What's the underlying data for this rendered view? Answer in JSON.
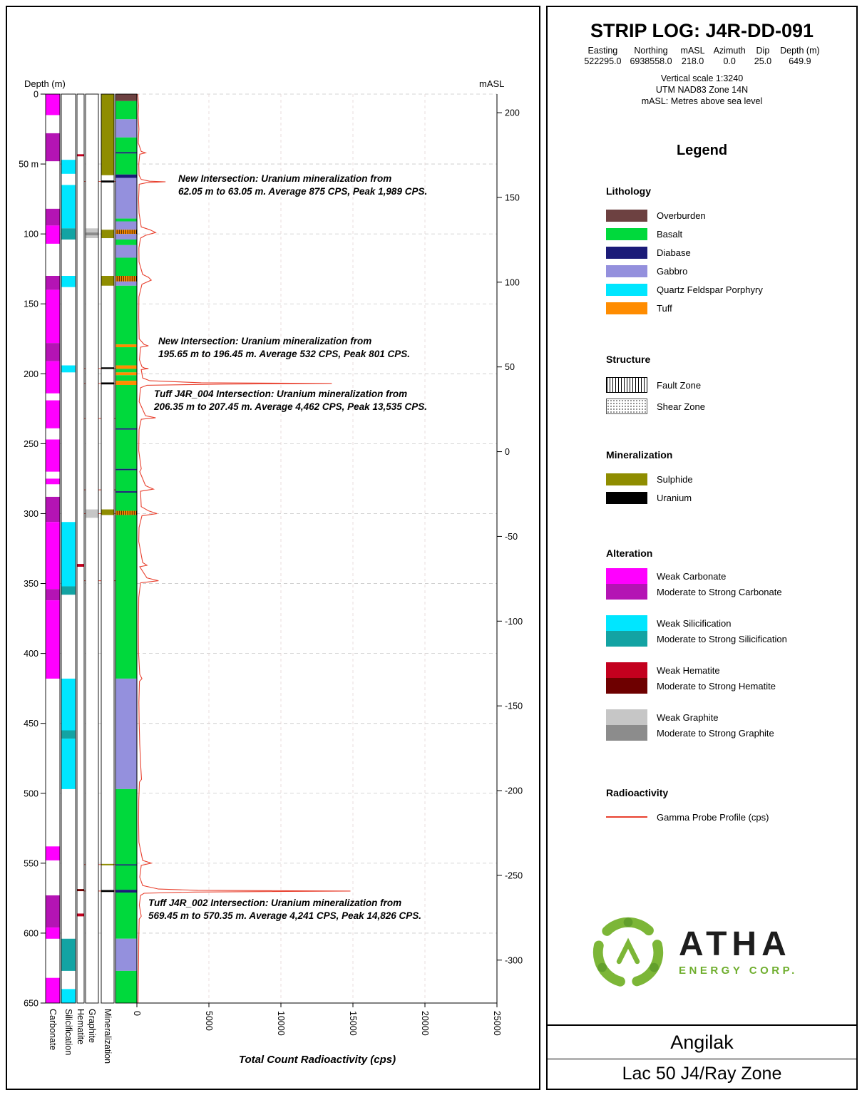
{
  "header": {
    "title": "STRIP LOG: J4R-DD-091",
    "fields": [
      {
        "label": "Easting",
        "value": "522295.0"
      },
      {
        "label": "Northing",
        "value": "6938558.0"
      },
      {
        "label": "mASL",
        "value": "218.0"
      },
      {
        "label": "Azimuth",
        "value": "0.0"
      },
      {
        "label": "Dip",
        "value": "25.0"
      },
      {
        "label": "Depth (m)",
        "value": "649.9"
      }
    ],
    "scale_lines": [
      "Vertical scale 1:3240",
      "UTM NAD83 Zone 14N",
      "mASL: Metres above sea level"
    ]
  },
  "legend": {
    "title": "Legend",
    "lithology": {
      "title": "Lithology",
      "items": [
        {
          "label": "Overburden"
        },
        {
          "label": "Basalt"
        },
        {
          "label": "Diabase"
        },
        {
          "label": "Gabbro"
        },
        {
          "label": "Quartz Feldspar Porphyry"
        },
        {
          "label": "Tuff"
        }
      ]
    },
    "structure": {
      "title": "Structure",
      "items": [
        {
          "label": "Fault Zone"
        },
        {
          "label": "Shear Zone"
        }
      ]
    },
    "mineralization": {
      "title": "Mineralization",
      "items": [
        {
          "label": "Sulphide"
        },
        {
          "label": "Uranium"
        }
      ]
    },
    "alteration": {
      "title": "Alteration",
      "groups": [
        {
          "weak_label": "Weak Carbonate",
          "strong_label": "Moderate to Strong Carbonate"
        },
        {
          "weak_label": "Weak Silicification",
          "strong_label": "Moderate to Strong Silicification"
        },
        {
          "weak_label": "Weak Hematite",
          "strong_label": "Moderate to Strong Hematite"
        },
        {
          "weak_label": "Weak Graphite",
          "strong_label": "Moderate to Strong Graphite"
        }
      ]
    },
    "radioactivity": {
      "title": "Radioactivity",
      "items": [
        {
          "label": "Gamma Probe Profile (cps)"
        }
      ]
    }
  },
  "brand": {
    "name": "ATHA",
    "tagline": "ENERGY CORP."
  },
  "footer": {
    "area": "Angilak",
    "zone": "Lac 50 J4/Ray Zone"
  },
  "colors": {
    "Overburden": "#6d4141",
    "Basalt": "#00d93c",
    "Diabase": "#1b1b78",
    "Gabbro": "#9490dd",
    "Quartz Feldspar Porphyry": "#00e6ff",
    "Tuff": "#ff8c00",
    "Sulphide": "#8f8d00",
    "Uranium": "#000000",
    "weak_carbonate": "#ff00ff",
    "strong_carbonate": "#b414b4",
    "weak_silicification": "#00e6ff",
    "strong_silicification": "#13a3a3",
    "weak_hematite": "#c3001e",
    "strong_hematite": "#6e0000",
    "weak_graphite": "#c6c6c6",
    "strong_graphite": "#8c8c8c",
    "gamma": "#e8402e",
    "grid": "#c9c9c9"
  },
  "chart_data": {
    "type": "strip-log",
    "depth_axis": {
      "label": "Depth (m)",
      "min": 0,
      "max": 650,
      "tick_interval": 50
    },
    "depth_ticks": [
      "0",
      "50 m",
      "100",
      "150",
      "200",
      "250",
      "300",
      "350",
      "400",
      "450",
      "500",
      "550",
      "600",
      "650"
    ],
    "masl_axis_label": "mASL",
    "masl_ticks": [
      {
        "label": "200",
        "depth": 13.3
      },
      {
        "label": "150",
        "depth": 73.9
      },
      {
        "label": "100",
        "depth": 134.5
      },
      {
        "label": "50",
        "depth": 195.1
      },
      {
        "label": "0",
        "depth": 255.7
      },
      {
        "label": "-50",
        "depth": 316.3
      },
      {
        "label": "-100",
        "depth": 376.9
      },
      {
        "label": "-150",
        "depth": 437.5
      },
      {
        "label": "-200",
        "depth": 498.1
      },
      {
        "label": "-250",
        "depth": 558.7
      },
      {
        "label": "-300",
        "depth": 619.3
      }
    ],
    "cps_axis": {
      "label": "Total Count Radioactivity (cps)",
      "min": 0,
      "max": 25000
    },
    "cps_ticks": [
      "0",
      "5000",
      "10000",
      "15000",
      "20000",
      "25000"
    ],
    "track_labels": [
      "Carbonate",
      "Silicification",
      "Hematite",
      "Graphite",
      "Mineralization"
    ],
    "tracks": {
      "carbonate": [
        {
          "from": 0,
          "to": 15,
          "g": "weak"
        },
        {
          "from": 28,
          "to": 48,
          "g": "strong"
        },
        {
          "from": 82,
          "to": 94,
          "g": "strong"
        },
        {
          "from": 94,
          "to": 107,
          "g": "weak"
        },
        {
          "from": 130,
          "to": 140,
          "g": "strong"
        },
        {
          "from": 140,
          "to": 178,
          "g": "weak"
        },
        {
          "from": 178,
          "to": 191,
          "g": "strong"
        },
        {
          "from": 191,
          "to": 214,
          "g": "weak"
        },
        {
          "from": 219,
          "to": 239,
          "g": "weak"
        },
        {
          "from": 247,
          "to": 270,
          "g": "weak"
        },
        {
          "from": 275,
          "to": 279,
          "g": "weak"
        },
        {
          "from": 288,
          "to": 306,
          "g": "strong"
        },
        {
          "from": 306,
          "to": 354,
          "g": "weak"
        },
        {
          "from": 354,
          "to": 362,
          "g": "strong"
        },
        {
          "from": 362,
          "to": 418,
          "g": "weak"
        },
        {
          "from": 538,
          "to": 548,
          "g": "weak"
        },
        {
          "from": 573,
          "to": 596,
          "g": "strong"
        },
        {
          "from": 596,
          "to": 604,
          "g": "weak"
        },
        {
          "from": 632,
          "to": 650,
          "g": "weak"
        }
      ],
      "silicification": [
        {
          "from": 47,
          "to": 57,
          "g": "weak"
        },
        {
          "from": 65,
          "to": 96,
          "g": "weak"
        },
        {
          "from": 96,
          "to": 104,
          "g": "strong"
        },
        {
          "from": 130,
          "to": 138,
          "g": "weak"
        },
        {
          "from": 194,
          "to": 199,
          "g": "weak"
        },
        {
          "from": 306,
          "to": 352,
          "g": "weak"
        },
        {
          "from": 352,
          "to": 358,
          "g": "strong"
        },
        {
          "from": 418,
          "to": 455,
          "g": "weak"
        },
        {
          "from": 455,
          "to": 461,
          "g": "strong"
        },
        {
          "from": 461,
          "to": 497,
          "g": "weak"
        },
        {
          "from": 604,
          "to": 627,
          "g": "strong"
        },
        {
          "from": 640,
          "to": 650,
          "g": "weak"
        }
      ],
      "hematite": [
        {
          "from": 43,
          "to": 44.5,
          "g": "weak"
        },
        {
          "from": 336,
          "to": 338,
          "g": "weak"
        },
        {
          "from": 568.5,
          "to": 570,
          "g": "strong"
        },
        {
          "from": 586,
          "to": 588,
          "g": "weak"
        }
      ],
      "graphite": [
        {
          "from": 96,
          "to": 103,
          "g": "weak"
        },
        {
          "from": 99,
          "to": 101,
          "g": "strong"
        },
        {
          "from": 297,
          "to": 303,
          "g": "weak"
        }
      ],
      "mineralization": [
        {
          "from": 0,
          "to": 58,
          "type": "Sulphide"
        },
        {
          "from": 61.8,
          "to": 63.2,
          "type": "Uranium"
        },
        {
          "from": 97,
          "to": 103,
          "type": "Sulphide"
        },
        {
          "from": 130,
          "to": 137,
          "type": "Sulphide"
        },
        {
          "from": 195.4,
          "to": 196.6,
          "type": "Uranium"
        },
        {
          "from": 206.2,
          "to": 207.6,
          "type": "Uranium"
        },
        {
          "from": 297,
          "to": 301,
          "type": "Sulphide"
        },
        {
          "from": 550.5,
          "to": 551.5,
          "type": "Sulphide"
        },
        {
          "from": 569.2,
          "to": 570.6,
          "type": "Uranium"
        }
      ],
      "lithology": [
        {
          "from": 0,
          "to": 5,
          "unit": "Overburden"
        },
        {
          "from": 5,
          "to": 18,
          "unit": "Basalt"
        },
        {
          "from": 18,
          "to": 31,
          "unit": "Gabbro"
        },
        {
          "from": 31,
          "to": 41.5,
          "unit": "Basalt"
        },
        {
          "from": 41.5,
          "to": 42.5,
          "unit": "Diabase"
        },
        {
          "from": 42.5,
          "to": 57.5,
          "unit": "Basalt"
        },
        {
          "from": 57.5,
          "to": 60,
          "unit": "Diabase"
        },
        {
          "from": 60,
          "to": 89,
          "unit": "Gabbro"
        },
        {
          "from": 89,
          "to": 91,
          "unit": "Basalt"
        },
        {
          "from": 91,
          "to": 97,
          "unit": "Gabbro"
        },
        {
          "from": 97,
          "to": 100,
          "unit": "Tuff",
          "hatch": true
        },
        {
          "from": 100,
          "to": 104,
          "unit": "Gabbro"
        },
        {
          "from": 104,
          "to": 108,
          "unit": "Basalt"
        },
        {
          "from": 108,
          "to": 117,
          "unit": "Gabbro"
        },
        {
          "from": 117,
          "to": 130,
          "unit": "Basalt"
        },
        {
          "from": 130,
          "to": 134,
          "unit": "Tuff",
          "hatch": true
        },
        {
          "from": 134,
          "to": 137,
          "unit": "Gabbro"
        },
        {
          "from": 137,
          "to": 179,
          "unit": "Basalt"
        },
        {
          "from": 179,
          "to": 181,
          "unit": "Tuff"
        },
        {
          "from": 181,
          "to": 194,
          "unit": "Basalt"
        },
        {
          "from": 194,
          "to": 196.5,
          "unit": "Tuff"
        },
        {
          "from": 196.5,
          "to": 199,
          "unit": "Basalt"
        },
        {
          "from": 199,
          "to": 201,
          "unit": "Tuff"
        },
        {
          "from": 201,
          "to": 205,
          "unit": "Basalt"
        },
        {
          "from": 205,
          "to": 208,
          "unit": "Tuff"
        },
        {
          "from": 208,
          "to": 239,
          "unit": "Basalt"
        },
        {
          "from": 239,
          "to": 240,
          "unit": "Diabase"
        },
        {
          "from": 240,
          "to": 268,
          "unit": "Basalt"
        },
        {
          "from": 268,
          "to": 269,
          "unit": "Diabase"
        },
        {
          "from": 269,
          "to": 284,
          "unit": "Basalt"
        },
        {
          "from": 284,
          "to": 285,
          "unit": "Diabase"
        },
        {
          "from": 285,
          "to": 298,
          "unit": "Basalt"
        },
        {
          "from": 298,
          "to": 301,
          "unit": "Tuff",
          "hatch": true
        },
        {
          "from": 301,
          "to": 418,
          "unit": "Basalt"
        },
        {
          "from": 418,
          "to": 497,
          "unit": "Gabbro"
        },
        {
          "from": 497,
          "to": 550.8,
          "unit": "Basalt"
        },
        {
          "from": 550.8,
          "to": 551.6,
          "unit": "Diabase"
        },
        {
          "from": 551.6,
          "to": 569,
          "unit": "Basalt"
        },
        {
          "from": 569,
          "to": 571,
          "unit": "Diabase"
        },
        {
          "from": 571,
          "to": 604,
          "unit": "Basalt"
        },
        {
          "from": 604,
          "to": 627,
          "unit": "Gabbro"
        },
        {
          "from": 627,
          "to": 650,
          "unit": "Basalt"
        }
      ]
    },
    "gamma_profile": [
      [
        0,
        60
      ],
      [
        8,
        120
      ],
      [
        15,
        90
      ],
      [
        25,
        140
      ],
      [
        35,
        100
      ],
      [
        41,
        300
      ],
      [
        42,
        600
      ],
      [
        43,
        200
      ],
      [
        50,
        130
      ],
      [
        58,
        150
      ],
      [
        61,
        300
      ],
      [
        62.3,
        875
      ],
      [
        62.7,
        1989
      ],
      [
        63.3,
        700
      ],
      [
        64.5,
        160
      ],
      [
        75,
        120
      ],
      [
        85,
        150
      ],
      [
        95,
        300
      ],
      [
        97,
        900
      ],
      [
        99,
        1300
      ],
      [
        101,
        600
      ],
      [
        103,
        250
      ],
      [
        110,
        140
      ],
      [
        120,
        150
      ],
      [
        129,
        400
      ],
      [
        131,
        800
      ],
      [
        133,
        1000
      ],
      [
        136,
        350
      ],
      [
        145,
        140
      ],
      [
        160,
        130
      ],
      [
        175,
        160
      ],
      [
        179,
        500
      ],
      [
        180,
        800
      ],
      [
        181,
        250
      ],
      [
        190,
        180
      ],
      [
        195,
        350
      ],
      [
        195.9,
        532
      ],
      [
        196.2,
        801
      ],
      [
        197,
        300
      ],
      [
        203,
        400
      ],
      [
        205,
        900
      ],
      [
        206.4,
        4462
      ],
      [
        206.9,
        13535
      ],
      [
        207.4,
        6000
      ],
      [
        208.2,
        700
      ],
      [
        210,
        250
      ],
      [
        220,
        160
      ],
      [
        230,
        600
      ],
      [
        231.5,
        1300
      ],
      [
        232.5,
        300
      ],
      [
        240,
        150
      ],
      [
        255,
        130
      ],
      [
        268,
        300
      ],
      [
        270,
        200
      ],
      [
        280,
        600
      ],
      [
        282.5,
        1150
      ],
      [
        284,
        250
      ],
      [
        295,
        300
      ],
      [
        298,
        800
      ],
      [
        300,
        1400
      ],
      [
        301.5,
        350
      ],
      [
        310,
        150
      ],
      [
        320,
        130
      ],
      [
        335,
        400
      ],
      [
        337,
        700
      ],
      [
        338,
        200
      ],
      [
        346,
        700
      ],
      [
        348,
        1500
      ],
      [
        349.5,
        250
      ],
      [
        360,
        130
      ],
      [
        380,
        110
      ],
      [
        400,
        120
      ],
      [
        415,
        200
      ],
      [
        418,
        350
      ],
      [
        420,
        180
      ],
      [
        435,
        140
      ],
      [
        450,
        160
      ],
      [
        465,
        200
      ],
      [
        480,
        260
      ],
      [
        490,
        320
      ],
      [
        492,
        180
      ],
      [
        505,
        130
      ],
      [
        520,
        120
      ],
      [
        535,
        140
      ],
      [
        548,
        400
      ],
      [
        550,
        1000
      ],
      [
        551.5,
        300
      ],
      [
        560,
        200
      ],
      [
        566,
        400
      ],
      [
        568.5,
        1500
      ],
      [
        569.4,
        4241
      ],
      [
        569.9,
        14826
      ],
      [
        570.6,
        4000
      ],
      [
        571.5,
        500
      ],
      [
        573,
        250
      ],
      [
        580,
        170
      ],
      [
        588,
        300
      ],
      [
        590,
        160
      ],
      [
        605,
        130
      ],
      [
        620,
        120
      ],
      [
        635,
        100
      ],
      [
        650,
        80
      ]
    ],
    "red_markers": [
      62.5,
      196.2,
      206.9,
      232,
      283,
      300,
      348,
      551,
      569.9
    ],
    "annotations": [
      {
        "line1": "New Intersection: Uranium mineralization from",
        "line2": "62.05 m to 63.05 m. Average 875 CPS, Peak 1,989 CPS."
      },
      {
        "line1": "New Intersection: Uranium mineralization from",
        "line2": "195.65 m to 196.45 m. Average 532 CPS, Peak 801 CPS."
      },
      {
        "line1": "Tuff J4R_004 Intersection: Uranium mineralization from",
        "line2": "206.35 m to 207.45 m. Average 4,462 CPS, Peak 13,535 CPS."
      },
      {
        "line1": "Tuff J4R_002 Intersection: Uranium mineralization from",
        "line2": "569.45 m to 570.35 m. Average 4,241 CPS, Peak 14,826 CPS."
      }
    ]
  }
}
